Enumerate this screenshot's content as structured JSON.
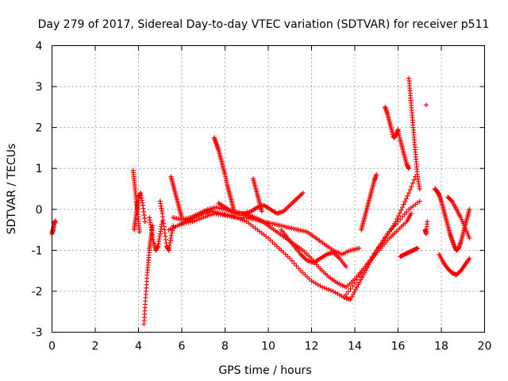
{
  "chart_data": {
    "type": "scatter",
    "title": "Day 279 of 2017, Sidereal Day-to-day VTEC variation (SDTVAR) for receiver p511",
    "xlabel": "GPS time / hours",
    "ylabel": "SDTVAR / TECUs",
    "xlim": [
      0,
      20
    ],
    "ylim": [
      -3,
      4
    ],
    "xticks": [
      0,
      2,
      4,
      6,
      8,
      10,
      12,
      14,
      16,
      18,
      20
    ],
    "yticks": [
      -3,
      -2,
      -1,
      0,
      1,
      2,
      3,
      4
    ],
    "grid": true,
    "marker": "+",
    "color": "#ff0000",
    "series": [
      {
        "name": "s1",
        "x": [
          0.0,
          0.05,
          0.1,
          0.15
        ],
        "y": [
          -0.6,
          -0.5,
          -0.35,
          -0.28
        ]
      },
      {
        "name": "s2",
        "x": [
          3.75,
          3.8,
          3.85,
          3.9,
          3.95,
          4.0,
          4.05
        ],
        "y": [
          0.95,
          0.7,
          0.45,
          0.2,
          0.0,
          -0.3,
          -0.55
        ]
      },
      {
        "name": "s3",
        "x": [
          3.8,
          3.85,
          3.9,
          3.95,
          4.0,
          4.1,
          4.2,
          4.3
        ],
        "y": [
          -0.5,
          -0.3,
          -0.1,
          0.1,
          0.3,
          0.4,
          0.1,
          -0.3
        ]
      },
      {
        "name": "s4",
        "x": [
          4.25,
          4.3,
          4.35,
          4.4,
          4.45,
          4.5,
          4.55,
          4.6,
          4.65
        ],
        "y": [
          -2.8,
          -2.4,
          -2.0,
          -1.6,
          -1.3,
          -1.0,
          -0.8,
          -0.6,
          -0.4
        ]
      },
      {
        "name": "s5",
        "x": [
          4.5,
          4.6,
          4.7,
          4.8,
          4.9,
          5.0,
          5.1
        ],
        "y": [
          -0.2,
          -0.5,
          -0.8,
          -1.0,
          -0.9,
          -0.6,
          -0.3
        ]
      },
      {
        "name": "s6",
        "x": [
          5.0,
          5.1,
          5.2,
          5.3,
          5.4,
          5.5,
          5.6
        ],
        "y": [
          0.2,
          -0.1,
          -0.5,
          -0.9,
          -1.0,
          -0.7,
          -0.4
        ]
      },
      {
        "name": "s7",
        "x": [
          5.5,
          5.6,
          5.7,
          5.8,
          5.9,
          6.0
        ],
        "y": [
          0.8,
          0.6,
          0.4,
          0.2,
          0.0,
          -0.2
        ]
      },
      {
        "name": "s8",
        "x": [
          5.4,
          5.8,
          6.2,
          6.6,
          7.0,
          7.4,
          7.8,
          8.2,
          8.6,
          9.0,
          9.4,
          9.8,
          10.2,
          10.6,
          11.0,
          11.4,
          11.8,
          12.2,
          12.6,
          13.0,
          13.4,
          13.8,
          14.2
        ],
        "y": [
          -0.5,
          -0.4,
          -0.3,
          -0.2,
          -0.1,
          -0.05,
          -0.1,
          -0.15,
          -0.2,
          -0.2,
          -0.25,
          -0.3,
          -0.35,
          -0.4,
          -0.45,
          -0.5,
          -0.55,
          -0.7,
          -0.85,
          -1.0,
          -1.1,
          -1.0,
          -0.95
        ]
      },
      {
        "name": "s9",
        "x": [
          5.6,
          6.0,
          6.4,
          6.8,
          7.2,
          7.6,
          8.0,
          8.4,
          8.8,
          9.2,
          9.6,
          10.0,
          10.4,
          10.8,
          11.2,
          11.6,
          12.0,
          12.4,
          12.8,
          13.2,
          13.6,
          14.0,
          14.4,
          14.8,
          15.2,
          15.6,
          16.0,
          16.4,
          16.6
        ],
        "y": [
          -0.2,
          -0.25,
          -0.2,
          -0.1,
          0.0,
          0.05,
          0.0,
          -0.05,
          -0.1,
          -0.15,
          -0.25,
          -0.4,
          -0.55,
          -0.7,
          -0.85,
          -1.0,
          -1.2,
          -1.45,
          -1.65,
          -1.8,
          -1.9,
          -1.7,
          -1.45,
          -1.2,
          -0.95,
          -0.7,
          -0.5,
          -0.3,
          -0.1
        ]
      },
      {
        "name": "s10",
        "x": [
          6.0,
          6.5,
          7.0,
          7.5,
          8.0,
          8.5,
          9.0,
          9.5,
          10.0,
          10.5,
          11.0,
          11.5,
          12.0,
          12.5,
          13.0,
          13.5,
          14.0,
          14.5,
          15.0,
          15.5,
          16.0,
          16.5,
          17.0
        ],
        "y": [
          -0.35,
          -0.3,
          -0.2,
          -0.1,
          -0.15,
          -0.2,
          -0.3,
          -0.5,
          -0.7,
          -0.95,
          -1.2,
          -1.5,
          -1.75,
          -1.9,
          -2.0,
          -2.15,
          -1.8,
          -1.4,
          -1.0,
          -0.6,
          -0.3,
          0.0,
          0.2
        ]
      },
      {
        "name": "s11",
        "x": [
          7.5,
          7.6,
          7.7,
          7.8,
          7.9,
          8.0,
          8.1,
          8.2,
          8.3,
          8.4
        ],
        "y": [
          1.75,
          1.6,
          1.45,
          1.25,
          1.05,
          0.85,
          0.6,
          0.4,
          0.2,
          0.0
        ]
      },
      {
        "name": "s12",
        "x": [
          7.7,
          8.0,
          8.3,
          8.6,
          8.9,
          9.2,
          9.5,
          9.8,
          10.1,
          10.4,
          10.7,
          11.0,
          11.3,
          11.6
        ],
        "y": [
          0.15,
          0.05,
          -0.05,
          -0.1,
          -0.1,
          -0.05,
          0.05,
          0.1,
          0.0,
          -0.1,
          -0.05,
          0.1,
          0.25,
          0.4
        ]
      },
      {
        "name": "s13",
        "x": [
          9.3,
          9.4,
          9.5,
          9.6,
          9.7
        ],
        "y": [
          0.75,
          0.55,
          0.35,
          0.15,
          -0.05
        ]
      },
      {
        "name": "s14",
        "x": [
          10.6,
          10.9,
          11.2,
          11.5,
          11.8,
          12.1,
          12.4,
          12.7,
          13.0,
          13.3,
          13.6
        ],
        "y": [
          -0.5,
          -0.7,
          -0.9,
          -1.1,
          -1.25,
          -1.3,
          -1.2,
          -1.1,
          -1.05,
          -1.2,
          -1.4
        ]
      },
      {
        "name": "s15",
        "x": [
          13.5,
          13.8,
          14.1,
          14.4,
          14.7,
          15.0,
          15.3,
          15.6,
          15.9,
          16.2,
          16.5,
          16.8
        ],
        "y": [
          -2.15,
          -2.2,
          -1.9,
          -1.6,
          -1.3,
          -1.0,
          -0.8,
          -0.55,
          -0.3,
          0.05,
          0.4,
          0.8
        ]
      },
      {
        "name": "s16",
        "x": [
          14.3,
          14.4,
          14.5,
          14.6,
          14.7,
          14.8,
          14.9,
          15.0
        ],
        "y": [
          -0.5,
          -0.3,
          -0.1,
          0.1,
          0.3,
          0.5,
          0.7,
          0.85
        ]
      },
      {
        "name": "s17",
        "x": [
          15.4,
          15.5,
          15.6,
          15.7,
          15.8,
          15.9,
          16.0,
          16.1,
          16.2,
          16.3,
          16.4,
          16.5
        ],
        "y": [
          2.5,
          2.35,
          2.15,
          1.95,
          1.75,
          1.8,
          1.95,
          1.7,
          1.5,
          1.3,
          1.1,
          1.0
        ]
      },
      {
        "name": "s18",
        "x": [
          16.5,
          16.55,
          16.6,
          16.65,
          16.7,
          16.75,
          16.8,
          16.85,
          16.9,
          17.0
        ],
        "y": [
          3.2,
          2.9,
          2.6,
          2.3,
          2.0,
          1.7,
          1.4,
          1.1,
          0.8,
          0.5
        ]
      },
      {
        "name": "s19",
        "x": [
          16.1,
          16.3,
          16.5,
          16.7,
          16.9
        ],
        "y": [
          -1.15,
          -1.1,
          -1.05,
          -1.0,
          -0.95
        ]
      },
      {
        "name": "s20",
        "x": [
          17.3
        ],
        "y": [
          2.55
        ]
      },
      {
        "name": "s21",
        "x": [
          17.25,
          17.3,
          17.35
        ],
        "y": [
          -0.5,
          -0.6,
          -0.3
        ]
      },
      {
        "name": "s22",
        "x": [
          17.7,
          17.8,
          17.9,
          18.0,
          18.1,
          18.2,
          18.3,
          18.4,
          18.5,
          18.6,
          18.7,
          18.8,
          18.9,
          19.0,
          19.1,
          19.2,
          19.3
        ],
        "y": [
          0.5,
          0.45,
          0.35,
          0.2,
          0.0,
          -0.2,
          -0.4,
          -0.6,
          -0.75,
          -0.9,
          -1.0,
          -0.95,
          -0.8,
          -0.6,
          -0.4,
          -0.2,
          0.0
        ]
      },
      {
        "name": "s23",
        "x": [
          17.9,
          18.1,
          18.3,
          18.5,
          18.7,
          18.9,
          19.1,
          19.3
        ],
        "y": [
          -1.1,
          -1.3,
          -1.45,
          -1.55,
          -1.6,
          -1.5,
          -1.35,
          -1.2
        ]
      },
      {
        "name": "s24",
        "x": [
          18.3,
          18.5,
          18.7,
          18.9,
          19.1,
          19.3
        ],
        "y": [
          0.3,
          0.2,
          0.0,
          -0.2,
          -0.45,
          -0.7
        ]
      }
    ]
  }
}
